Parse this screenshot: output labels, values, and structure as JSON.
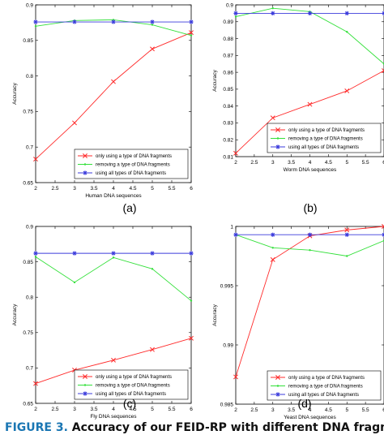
{
  "colors": {
    "only": "#ff2b2b",
    "removing": "#33e03a",
    "all": "#3b3bdc",
    "caption_label": "#1a76b3",
    "axis": "#000000"
  },
  "caption": {
    "label": "FIGURE 3.",
    "text": "Accuracy of our FEID-RP with different DNA fragments in"
  },
  "panels": [
    {
      "panel_label": "(a)",
      "chart_data": {
        "type": "line",
        "xlabel": "Human DNA sequences",
        "ylabel": "Accuracy",
        "xlim": [
          2,
          6
        ],
        "ylim": [
          0.65,
          0.9
        ],
        "xticks": [
          "2",
          "2.5",
          "3",
          "3.5",
          "4",
          "4.5",
          "5",
          "5.5",
          "6"
        ],
        "yticks": [
          "0.65",
          "0.7",
          "0.75",
          "0.8",
          "0.85",
          "0.9"
        ],
        "x": [
          2,
          3,
          4,
          5,
          6
        ],
        "series": [
          {
            "name": "only using a type of DNA fragments",
            "values": [
              0.683,
              0.734,
              0.792,
              0.838,
              0.861
            ]
          },
          {
            "name": "removing a type of DNA fragments",
            "values": [
              0.87,
              0.878,
              0.879,
              0.872,
              0.857
            ]
          },
          {
            "name": "using all types of DNA fragments",
            "values": [
              0.876,
              0.876,
              0.876,
              0.876,
              0.876
            ]
          }
        ],
        "legend": "bottom-right",
        "grid": false
      }
    },
    {
      "panel_label": "(b)",
      "chart_data": {
        "type": "line",
        "xlabel": "Worm DNA sequences",
        "ylabel": "Accuracy",
        "xlim": [
          2,
          6
        ],
        "ylim": [
          0.81,
          0.9
        ],
        "xticks": [
          "2",
          "2.5",
          "3",
          "3.5",
          "4",
          "4.5",
          "5",
          "5.5",
          "6"
        ],
        "yticks": [
          "0.81",
          "0.82",
          "0.83",
          "0.84",
          "0.85",
          "0.86",
          "0.87",
          "0.88",
          "0.89",
          "0.9"
        ],
        "x": [
          2,
          3,
          4,
          5,
          6
        ],
        "series": [
          {
            "name": "only using a type of DNA fragments",
            "values": [
              0.812,
              0.833,
              0.841,
              0.849,
              0.861
            ]
          },
          {
            "name": "removing a type of DNA fragments",
            "values": [
              0.893,
              0.898,
              0.896,
              0.884,
              0.865
            ]
          },
          {
            "name": "using all types of DNA fragments",
            "values": [
              0.895,
              0.895,
              0.895,
              0.895,
              0.895
            ]
          }
        ],
        "legend": "bottom-right",
        "grid": false
      }
    },
    {
      "panel_label": "(c)",
      "chart_data": {
        "type": "line",
        "xlabel": "Fly DNA sequences",
        "ylabel": "Accuracy",
        "xlim": [
          2,
          6
        ],
        "ylim": [
          0.65,
          0.9
        ],
        "xticks": [
          "2",
          "2.5",
          "3",
          "3.5",
          "4",
          "4.5",
          "5",
          "5.5",
          "6"
        ],
        "yticks": [
          "0.65",
          "0.7",
          "0.75",
          "0.8",
          "0.85",
          "0.9"
        ],
        "x": [
          2,
          3,
          4,
          5,
          6
        ],
        "series": [
          {
            "name": "only using a type of DNA fragments",
            "values": [
              0.678,
              0.697,
              0.711,
              0.726,
              0.742
            ]
          },
          {
            "name": "removing a type of DNA fragments",
            "values": [
              0.857,
              0.821,
              0.856,
              0.84,
              0.795
            ]
          },
          {
            "name": "using all types of DNA fragments",
            "values": [
              0.862,
              0.862,
              0.862,
              0.862,
              0.862
            ]
          }
        ],
        "legend": "bottom-right",
        "grid": false
      }
    },
    {
      "panel_label": "(d)",
      "chart_data": {
        "type": "line",
        "xlabel": "Yeast DNA sequences",
        "ylabel": "Accuracy",
        "xlim": [
          2,
          6
        ],
        "ylim": [
          0.985,
          1
        ],
        "xticks": [
          "2",
          "2.5",
          "3",
          "3.5",
          "4",
          "4.5",
          "5",
          "5.5",
          "6"
        ],
        "yticks": [
          "0.985",
          "0.99",
          "0.995",
          "1"
        ],
        "x": [
          2,
          3,
          4,
          5,
          6
        ],
        "series": [
          {
            "name": "only using a type of DNA fragments",
            "values": [
              0.9873,
              0.9972,
              0.9992,
              0.9997,
              1.0
            ]
          },
          {
            "name": "removing a type of DNA fragments",
            "values": [
              0.9993,
              0.9982,
              0.998,
              0.9975,
              0.9988
            ]
          },
          {
            "name": "using all types of DNA fragments",
            "values": [
              0.9993,
              0.9993,
              0.9993,
              0.9993,
              0.9993
            ]
          }
        ],
        "legend": "bottom-right",
        "grid": false
      }
    }
  ]
}
